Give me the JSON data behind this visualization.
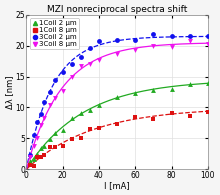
{
  "title": "MZI nonreciprocal spectra shift",
  "xlabel": "I [mA]",
  "ylabel": "Δλ [nm]",
  "xlim": [
    0,
    100
  ],
  "ylim": [
    0,
    25
  ],
  "xticks": [
    0,
    20,
    40,
    60,
    80,
    100
  ],
  "yticks": [
    0,
    5,
    10,
    15,
    20,
    25
  ],
  "series": [
    {
      "label": "1Coil 2 μm",
      "color": "#22aa22",
      "marker": "^",
      "line_style": "-",
      "sat": 14.5,
      "k": 0.032
    },
    {
      "label": "1Coil 8 μm",
      "color": "#dd1111",
      "marker": "s",
      "line_style": "--",
      "sat": 10.0,
      "k": 0.028
    },
    {
      "label": "3Coil 2 μm",
      "color": "#1111ee",
      "marker": "o",
      "line_style": "--",
      "sat": 21.5,
      "k": 0.068
    },
    {
      "label": "3Coil 8 μm",
      "color": "#ee11ee",
      "marker": "v",
      "line_style": "-",
      "sat": 20.5,
      "k": 0.052
    }
  ],
  "scatter_I": [
    2,
    4,
    6,
    8,
    10,
    13,
    16,
    20,
    25,
    30,
    35,
    40,
    50,
    60,
    70,
    80,
    90,
    100
  ],
  "noise_scale": 0.3,
  "background_color": "#f5f5f5",
  "plot_bg_color": "#ffffff",
  "grid_color": "#e0e0e0",
  "title_fontsize": 6.5,
  "label_fontsize": 6,
  "tick_fontsize": 5.5,
  "legend_fontsize": 5.0,
  "marker_size": 3.5,
  "line_width": 0.9
}
